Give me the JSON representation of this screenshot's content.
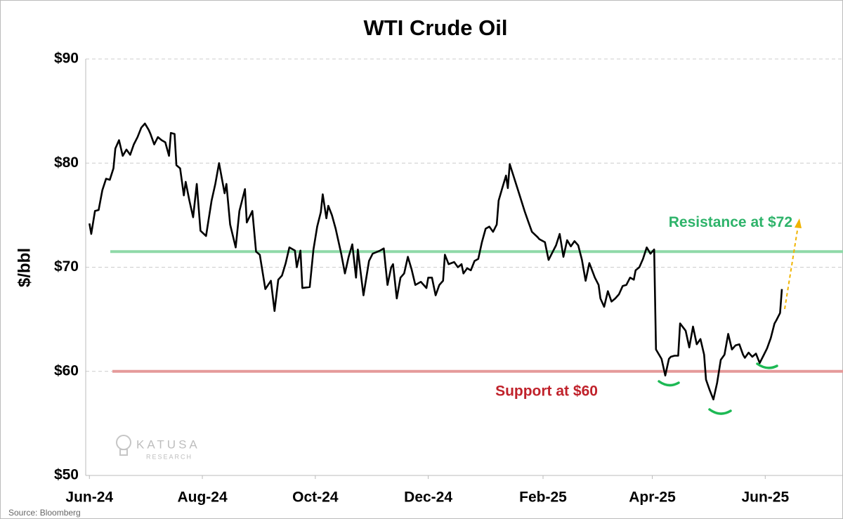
{
  "chart_data": {
    "type": "line",
    "title": "WTI Crude Oil",
    "ylabel": "$/bbl",
    "source": "Source: Bloomberg",
    "watermark": [
      "KATUSA",
      "RESEARCH"
    ],
    "xlim": [
      -2,
      407
    ],
    "xticks": [
      {
        "value": 0,
        "label": "Jun-24"
      },
      {
        "value": 61,
        "label": "Aug-24"
      },
      {
        "value": 122,
        "label": "Oct-24"
      },
      {
        "value": 183,
        "label": "Dec-24"
      },
      {
        "value": 245,
        "label": "Feb-25"
      },
      {
        "value": 304,
        "label": "Apr-25"
      },
      {
        "value": 365,
        "label": "Jun-25"
      }
    ],
    "ylim": [
      50,
      90
    ],
    "yticks": [
      {
        "value": 50,
        "label": "$50"
      },
      {
        "value": 60,
        "label": "$60"
      },
      {
        "value": 70,
        "label": "$70"
      },
      {
        "value": 80,
        "label": "$80"
      },
      {
        "value": 90,
        "label": "$90"
      }
    ],
    "grid": true,
    "levels": [
      {
        "label": "Resistance at $72",
        "value": 71.5,
        "color": "#8fd9a8",
        "text_color": "#2eb36a"
      },
      {
        "label": "Support at $60",
        "value": 60,
        "color": "#e59a9a",
        "text_color": "#c0222b"
      }
    ],
    "series": [
      {
        "name": "WTI",
        "color": "#000000",
        "x": [
          0,
          1,
          3,
          5,
          7,
          9,
          11,
          13,
          14,
          16,
          18,
          20,
          22,
          24,
          26,
          28,
          30,
          32,
          33,
          35,
          37,
          39,
          41,
          43,
          44,
          46,
          47,
          49,
          51,
          52,
          54,
          56,
          58,
          60,
          63,
          66,
          68,
          70,
          73,
          74,
          76,
          79,
          81,
          84,
          85,
          88,
          90,
          92,
          95,
          98,
          100,
          102,
          104,
          106,
          108,
          111,
          112,
          114,
          115,
          119,
          121,
          123,
          125,
          126,
          128,
          129,
          131,
          133,
          136,
          138,
          140,
          142,
          144,
          145,
          148,
          151,
          153,
          157,
          159,
          161,
          163,
          164,
          166,
          168,
          170,
          172,
          174,
          176,
          179,
          182,
          183,
          185,
          187,
          189,
          191,
          192,
          194,
          197,
          199,
          201,
          202,
          204,
          206,
          208,
          210,
          212,
          214,
          216,
          218,
          220,
          221,
          223,
          225,
          226,
          227,
          229,
          232,
          235,
          237,
          239,
          242,
          243,
          246,
          248,
          250,
          252,
          254,
          256,
          258,
          260,
          262,
          264,
          266,
          268,
          270,
          273,
          275,
          276,
          278,
          280,
          282,
          284,
          286,
          288,
          290,
          292,
          294,
          295,
          297,
          299,
          301,
          303,
          305,
          306,
          309,
          311,
          313,
          314,
          316,
          318,
          319,
          322,
          324,
          326,
          328,
          330,
          332,
          333,
          335,
          337,
          339,
          341,
          343,
          345,
          347,
          349,
          351,
          353,
          354,
          356,
          358,
          360,
          362,
          364,
          366,
          368,
          370,
          371,
          373,
          374
        ],
        "values": [
          74.2,
          73.2,
          75.4,
          75.5,
          77.4,
          78.5,
          78.4,
          79.5,
          81.4,
          82.2,
          80.7,
          81.3,
          80.8,
          81.8,
          82.5,
          83.4,
          83.8,
          83.2,
          82.8,
          81.8,
          82.5,
          82.2,
          82.0,
          80.7,
          82.9,
          82.8,
          79.8,
          79.5,
          76.9,
          78.2,
          76.4,
          74.8,
          78.0,
          73.5,
          73.0,
          76.4,
          78.0,
          80.0,
          77.1,
          78.0,
          74.1,
          71.9,
          75.4,
          77.5,
          74.3,
          75.4,
          71.5,
          71.2,
          67.9,
          68.7,
          65.8,
          68.8,
          69.2,
          70.4,
          71.9,
          71.6,
          70.0,
          71.6,
          68.0,
          68.1,
          71.7,
          73.9,
          75.3,
          77.0,
          74.7,
          75.9,
          75.0,
          73.7,
          71.3,
          69.4,
          71.0,
          72.2,
          69.0,
          71.7,
          67.3,
          70.6,
          71.3,
          71.6,
          71.8,
          68.3,
          70.0,
          70.3,
          67.0,
          69.0,
          69.4,
          71.0,
          69.8,
          68.3,
          68.6,
          68.0,
          69.0,
          69.0,
          67.3,
          68.3,
          68.7,
          71.2,
          70.3,
          70.5,
          70.0,
          70.3,
          69.4,
          69.9,
          69.7,
          70.6,
          70.8,
          72.4,
          73.7,
          73.9,
          73.4,
          74.1,
          76.4,
          77.6,
          78.8,
          77.6,
          79.9,
          78.8,
          77.1,
          75.4,
          74.4,
          73.4,
          72.9,
          72.7,
          72.4,
          70.7,
          71.4,
          72.1,
          73.2,
          71.0,
          72.6,
          72.0,
          72.5,
          72.1,
          70.7,
          68.7,
          70.4,
          69.0,
          68.3,
          67.0,
          66.2,
          67.7,
          66.7,
          67.0,
          67.4,
          68.2,
          68.3,
          69.0,
          68.8,
          69.7,
          70.0,
          70.8,
          71.9,
          71.3,
          71.7,
          62.1,
          61.2,
          59.6,
          61.2,
          61.4,
          61.5,
          61.5,
          64.6,
          63.9,
          62.3,
          64.3,
          62.6,
          63.1,
          61.6,
          59.2,
          58.2,
          57.3,
          58.9,
          61.1,
          61.6,
          63.6,
          62.1,
          62.5,
          62.6,
          61.6,
          61.3,
          61.8,
          61.4,
          61.7,
          60.8,
          61.5,
          62.2,
          63.2,
          64.6,
          64.9,
          65.6,
          67.9
        ]
      }
    ]
  }
}
